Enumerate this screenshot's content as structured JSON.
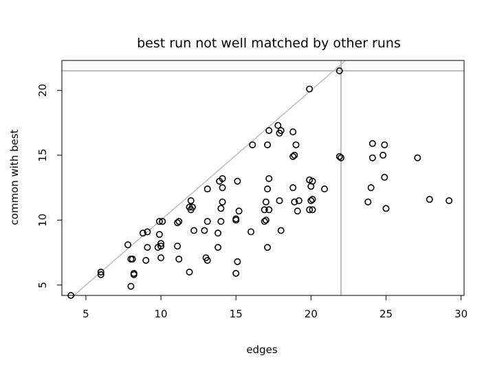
{
  "chart_data": {
    "type": "scatter",
    "title": "best  run not well  matched by other runs",
    "xlabel": "edges",
    "ylabel": "common with best",
    "xlim": [
      3.4,
      30.2
    ],
    "ylim": [
      4.2,
      22.3
    ],
    "xticks": [
      5,
      10,
      15,
      20,
      25,
      30
    ],
    "yticks": [
      5,
      10,
      15,
      20
    ],
    "grid": false,
    "reference_lines": {
      "diagonal_y_equals_x": true,
      "vertical_x": 22,
      "horizontal_y": 21.5,
      "color": "#bdbdbd"
    },
    "points": [
      [
        4,
        4.2
      ],
      [
        6,
        5.8
      ],
      [
        6,
        6.0
      ],
      [
        7.8,
        8.1
      ],
      [
        8,
        4.9
      ],
      [
        8,
        7.0
      ],
      [
        8.1,
        7.0
      ],
      [
        8.2,
        5.8
      ],
      [
        8.2,
        5.9
      ],
      [
        8.8,
        9.0
      ],
      [
        9,
        6.9
      ],
      [
        9.1,
        7.9
      ],
      [
        9.1,
        9.1
      ],
      [
        9.8,
        7.9
      ],
      [
        9.9,
        8.9
      ],
      [
        9.9,
        9.9
      ],
      [
        10,
        7.1
      ],
      [
        10,
        8.0
      ],
      [
        10,
        8.2
      ],
      [
        10.1,
        9.9
      ],
      [
        11.1,
        8.0
      ],
      [
        11.1,
        9.8
      ],
      [
        11.2,
        7.0
      ],
      [
        11.2,
        9.9
      ],
      [
        11.9,
        6.0
      ],
      [
        11.9,
        11.0
      ],
      [
        12,
        10.8
      ],
      [
        12,
        11.5
      ],
      [
        12.1,
        11.0
      ],
      [
        12.2,
        9.2
      ],
      [
        12.9,
        9.2
      ],
      [
        13,
        7.1
      ],
      [
        13.1,
        6.9
      ],
      [
        13.1,
        9.9
      ],
      [
        13.1,
        12.4
      ],
      [
        13.8,
        7.9
      ],
      [
        13.8,
        9.0
      ],
      [
        13.9,
        13.0
      ],
      [
        14,
        9.9
      ],
      [
        14,
        10.9
      ],
      [
        14.1,
        11.4
      ],
      [
        14.1,
        12.5
      ],
      [
        14.1,
        13.2
      ],
      [
        15,
        5.9
      ],
      [
        15,
        10.0
      ],
      [
        15,
        10.1
      ],
      [
        15.1,
        6.8
      ],
      [
        15.1,
        13.0
      ],
      [
        15.2,
        10.7
      ],
      [
        16,
        9.1
      ],
      [
        16.1,
        15.8
      ],
      [
        16.9,
        9.9
      ],
      [
        16.9,
        10.8
      ],
      [
        17,
        10.0
      ],
      [
        17,
        11.4
      ],
      [
        17.1,
        7.9
      ],
      [
        17.1,
        12.4
      ],
      [
        17.1,
        15.8
      ],
      [
        17.2,
        10.8
      ],
      [
        17.2,
        13.2
      ],
      [
        17.2,
        16.9
      ],
      [
        17.8,
        17.3
      ],
      [
        17.9,
        11.5
      ],
      [
        17.9,
        16.7
      ],
      [
        18,
        9.2
      ],
      [
        18,
        16.9
      ],
      [
        18.8,
        12.5
      ],
      [
        18.8,
        14.9
      ],
      [
        18.8,
        16.8
      ],
      [
        18.9,
        11.4
      ],
      [
        18.9,
        15.0
      ],
      [
        19,
        15.8
      ],
      [
        19.1,
        10.7
      ],
      [
        19.2,
        11.5
      ],
      [
        19.9,
        10.8
      ],
      [
        19.9,
        13.1
      ],
      [
        19.9,
        20.1
      ],
      [
        20,
        12.6
      ],
      [
        20,
        11.5
      ],
      [
        20.1,
        11.6
      ],
      [
        20.1,
        10.8
      ],
      [
        20.1,
        13.0
      ],
      [
        20.9,
        12.4
      ],
      [
        21.9,
        14.9
      ],
      [
        22,
        14.8
      ],
      [
        21.9,
        21.5
      ],
      [
        23.8,
        11.4
      ],
      [
        24,
        12.5
      ],
      [
        24.1,
        14.8
      ],
      [
        24.1,
        15.9
      ],
      [
        24.8,
        15.0
      ],
      [
        24.9,
        13.3
      ],
      [
        24.9,
        15.8
      ],
      [
        25,
        10.9
      ],
      [
        27.1,
        14.8
      ],
      [
        27.9,
        11.6
      ],
      [
        29.2,
        11.5
      ]
    ]
  }
}
